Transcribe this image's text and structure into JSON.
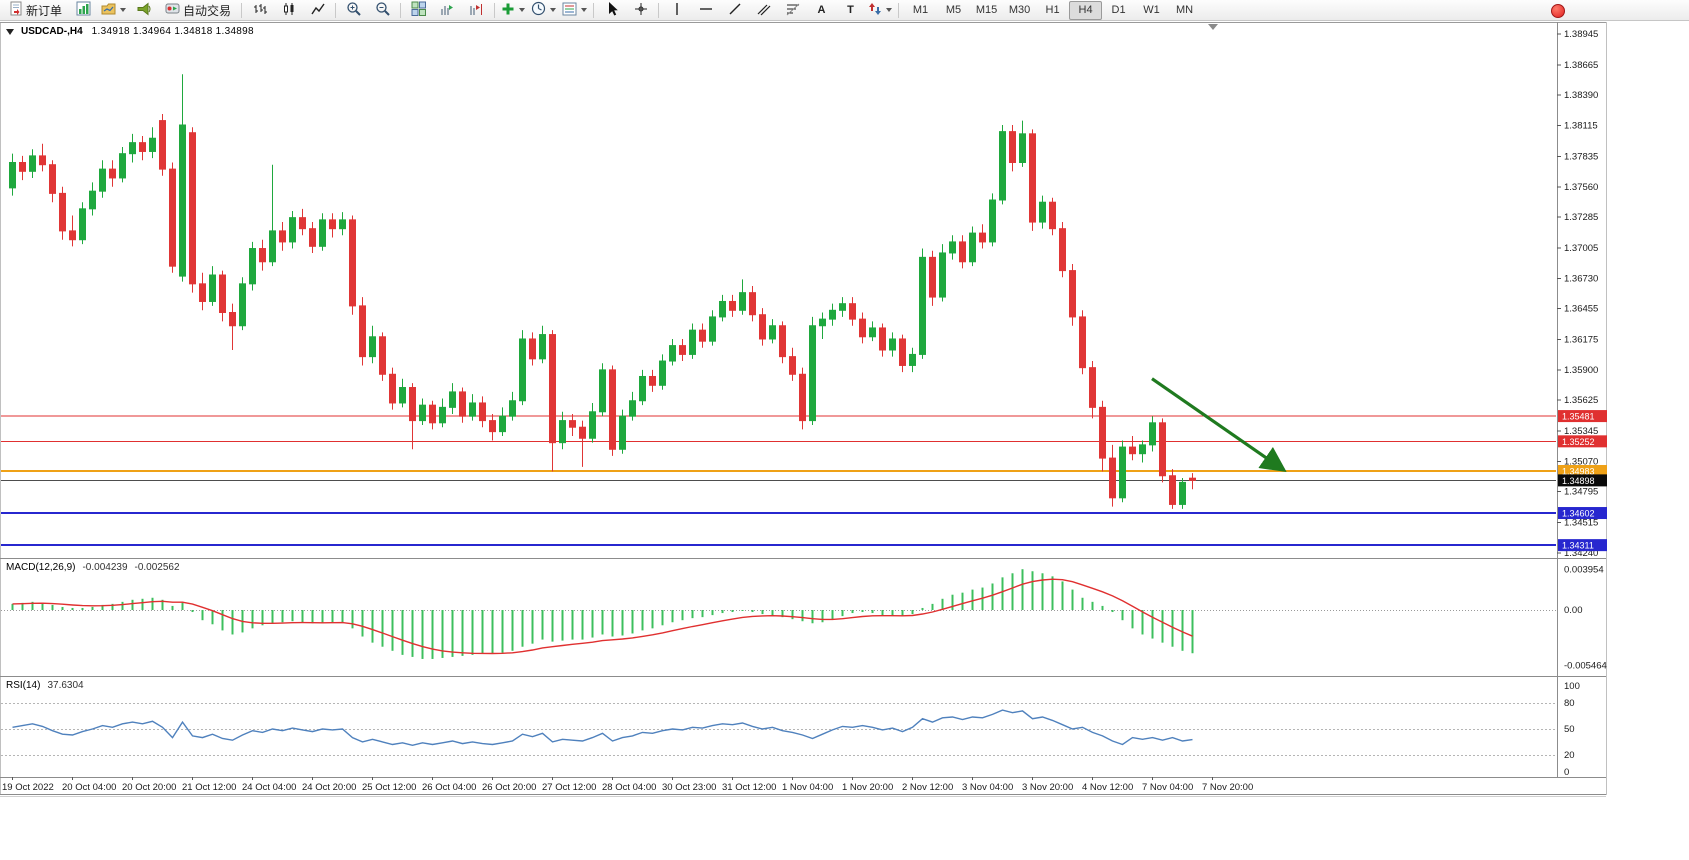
{
  "toolbar": {
    "new_order": "新订单",
    "autotrading": "自动交易",
    "timeframes": [
      "M1",
      "M5",
      "M15",
      "M30",
      "H1",
      "H4",
      "D1",
      "W1",
      "MN"
    ],
    "active_timeframe": "H4",
    "tool_glyphs": {
      "text": "A",
      "label": "T"
    }
  },
  "icons": {
    "new-order-icon": "order-ticket",
    "new-chart-icon": "bar-chart-window",
    "profiles-icon": "folder",
    "alerts-icon": "megaphone",
    "autotrading-icon": "robot-chip",
    "bars-type-icon": "ohlc-bars",
    "candles-type-icon": "candlesticks",
    "line-type-icon": "zigzag-line",
    "zoom-in-icon": "magnifier-plus",
    "zoom-out-icon": "magnifier-minus",
    "tile-windows-icon": "window-grid",
    "auto-scroll-icon": "chart-green-arrow",
    "chart-shift-icon": "chart-red-arrow",
    "indicators-icon": "green-plus",
    "periods-icon": "clock",
    "templates-icon": "chart-palette",
    "cursor-icon": "pointer-arrow",
    "crosshair-icon": "crosshair",
    "vline-icon": "vertical-line",
    "hline-icon": "horizontal-line",
    "trendline-icon": "diagonal-line",
    "channel-icon": "parallel-lines",
    "fibonacci-icon": "fib-retracement",
    "arrows-icon": "arrow-marks",
    "one-click-icon": "triangle-down",
    "notification-icon": "red-dot",
    "chart-shift-marker": "gray-triangle-down"
  },
  "chart_header": {
    "symbol_period": "USDCAD-,H4",
    "ohlc": "1.34918 1.34964 1.34818 1.34898"
  },
  "colors": {
    "bull": "#1fa83e",
    "bear": "#e03636",
    "macd_histogram": "#3cbf5e",
    "macd_signal": "#e03030",
    "rsi_line": "#4f81bd",
    "arrow": "#1f7a1f",
    "level_red": "#e03030",
    "level_orange": "#efa117",
    "level_blue": "#2727cf"
  },
  "chart_data": [
    {
      "type": "candlestick",
      "symbol": "USDCAD",
      "period": "H4",
      "y_ticks": [
        "1.38945",
        "1.38665",
        "1.38390",
        "1.38115",
        "1.37835",
        "1.37560",
        "1.37285",
        "1.37005",
        "1.36730",
        "1.36455",
        "1.36175",
        "1.35900",
        "1.35625",
        "1.35345",
        "1.35070",
        "1.34795",
        "1.34515",
        "1.34240"
      ],
      "x_labels": [
        "19 Oct 2022",
        "20 Oct 04:00",
        "20 Oct 20:00",
        "21 Oct 12:00",
        "24 Oct 04:00",
        "24 Oct 20:00",
        "25 Oct 12:00",
        "26 Oct 04:00",
        "26 Oct 20:00",
        "27 Oct 12:00",
        "28 Oct 04:00",
        "30 Oct 23:00",
        "31 Oct 12:00",
        "1 Nov 04:00",
        "1 Nov 20:00",
        "2 Nov 12:00",
        "3 Nov 04:00",
        "3 Nov 20:00",
        "4 Nov 12:00",
        "7 Nov 04:00",
        "7 Nov 20:00"
      ],
      "levels": [
        {
          "name": "resistance-line-upper",
          "price": 1.35481,
          "color": "#e03030",
          "width": 1,
          "tag": "1.35481"
        },
        {
          "name": "resistance-line-lower",
          "price": 1.35252,
          "color": "#e03030",
          "width": 1,
          "tag": "1.35252"
        },
        {
          "name": "pivot-orange-line",
          "price": 1.34983,
          "color": "#efa117",
          "width": 2,
          "tag": "1.34983"
        },
        {
          "name": "current-price-line",
          "price": 1.34898,
          "color": "#4d4d4d",
          "width": 1,
          "tag": "1.34898",
          "tag_bg": "#0a0a0a"
        },
        {
          "name": "support-line-upper",
          "price": 1.34602,
          "color": "#2727cf",
          "width": 2,
          "tag": "1.34602"
        },
        {
          "name": "support-line-lower",
          "price": 1.34311,
          "color": "#2727cf",
          "width": 2,
          "tag": "1.34311"
        }
      ],
      "arrow": {
        "from_bar": 114,
        "from_price": 1.3582,
        "to_bar": 127.2,
        "to_price": 1.3499,
        "color": "#1f7a1f"
      },
      "ohlc": [
        [
          1.3755,
          1.3786,
          1.3748,
          1.3778
        ],
        [
          1.3778,
          1.3784,
          1.3762,
          1.377
        ],
        [
          1.377,
          1.379,
          1.3764,
          1.3784
        ],
        [
          1.3784,
          1.3795,
          1.377,
          1.3776
        ],
        [
          1.3776,
          1.378,
          1.3742,
          1.375
        ],
        [
          1.375,
          1.3756,
          1.3708,
          1.3716
        ],
        [
          1.3716,
          1.373,
          1.3702,
          1.3708
        ],
        [
          1.3708,
          1.3742,
          1.3704,
          1.3736
        ],
        [
          1.3736,
          1.376,
          1.373,
          1.3752
        ],
        [
          1.3752,
          1.378,
          1.3746,
          1.3772
        ],
        [
          1.3772,
          1.378,
          1.3756,
          1.3764
        ],
        [
          1.3764,
          1.3792,
          1.376,
          1.3786
        ],
        [
          1.3786,
          1.3804,
          1.3778,
          1.3796
        ],
        [
          1.3796,
          1.3802,
          1.378,
          1.3788
        ],
        [
          1.3788,
          1.381,
          1.3782,
          1.38
        ],
        [
          1.3816,
          1.3822,
          1.3766,
          1.3772
        ],
        [
          1.3772,
          1.3778,
          1.3678,
          1.3684
        ],
        [
          1.3675,
          1.3858,
          1.367,
          1.3812
        ],
        [
          1.3805,
          1.381,
          1.366,
          1.3668
        ],
        [
          1.3668,
          1.3678,
          1.3644,
          1.3652
        ],
        [
          1.3652,
          1.3684,
          1.3648,
          1.3676
        ],
        [
          1.3676,
          1.368,
          1.3634,
          1.3642
        ],
        [
          1.3642,
          1.365,
          1.3608,
          1.363
        ],
        [
          1.363,
          1.3674,
          1.3626,
          1.3668
        ],
        [
          1.3668,
          1.3706,
          1.3662,
          1.37
        ],
        [
          1.37,
          1.3708,
          1.368,
          1.3688
        ],
        [
          1.3688,
          1.3776,
          1.3684,
          1.3716
        ],
        [
          1.3716,
          1.3724,
          1.3698,
          1.3706
        ],
        [
          1.3706,
          1.3734,
          1.37,
          1.3728
        ],
        [
          1.3728,
          1.3736,
          1.3712,
          1.3718
        ],
        [
          1.3718,
          1.3724,
          1.3696,
          1.3702
        ],
        [
          1.3702,
          1.3732,
          1.3698,
          1.3726
        ],
        [
          1.3726,
          1.3732,
          1.371,
          1.3718
        ],
        [
          1.3718,
          1.3733,
          1.3712,
          1.3726
        ],
        [
          1.3726,
          1.373,
          1.364,
          1.3648
        ],
        [
          1.3648,
          1.3656,
          1.3594,
          1.3602
        ],
        [
          1.3602,
          1.363,
          1.3596,
          1.362
        ],
        [
          1.362,
          1.3624,
          1.358,
          1.3586
        ],
        [
          1.3586,
          1.3592,
          1.3554,
          1.356
        ],
        [
          1.356,
          1.3582,
          1.3556,
          1.3574
        ],
        [
          1.3574,
          1.3578,
          1.3518,
          1.3544
        ],
        [
          1.3544,
          1.3564,
          1.354,
          1.3558
        ],
        [
          1.3558,
          1.3562,
          1.3536,
          1.3542
        ],
        [
          1.3542,
          1.3564,
          1.3538,
          1.3556
        ],
        [
          1.3556,
          1.3578,
          1.355,
          1.357
        ],
        [
          1.357,
          1.3574,
          1.3542,
          1.3548
        ],
        [
          1.3548,
          1.3568,
          1.3544,
          1.356
        ],
        [
          1.356,
          1.3566,
          1.3538,
          1.3544
        ],
        [
          1.3544,
          1.355,
          1.3526,
          1.3534
        ],
        [
          1.3534,
          1.3556,
          1.353,
          1.3548
        ],
        [
          1.3548,
          1.357,
          1.3544,
          1.3562
        ],
        [
          1.3562,
          1.3626,
          1.3558,
          1.3618
        ],
        [
          1.3618,
          1.3624,
          1.3594,
          1.36
        ],
        [
          1.36,
          1.363,
          1.3596,
          1.3622
        ],
        [
          1.3622,
          1.3626,
          1.3498,
          1.3524
        ],
        [
          1.3524,
          1.3552,
          1.3518,
          1.3544
        ],
        [
          1.3544,
          1.355,
          1.353,
          1.3538
        ],
        [
          1.3538,
          1.3544,
          1.3502,
          1.3528
        ],
        [
          1.3528,
          1.356,
          1.3524,
          1.3552
        ],
        [
          1.3552,
          1.3596,
          1.3548,
          1.359
        ],
        [
          1.359,
          1.3594,
          1.3512,
          1.3518
        ],
        [
          1.3518,
          1.3554,
          1.3514,
          1.3548
        ],
        [
          1.3548,
          1.357,
          1.3544,
          1.3562
        ],
        [
          1.3562,
          1.359,
          1.3558,
          1.3584
        ],
        [
          1.3584,
          1.359,
          1.357,
          1.3576
        ],
        [
          1.3576,
          1.3604,
          1.3572,
          1.3598
        ],
        [
          1.3598,
          1.3618,
          1.3594,
          1.3612
        ],
        [
          1.3612,
          1.3618,
          1.3598,
          1.3604
        ],
        [
          1.3604,
          1.3632,
          1.36,
          1.3626
        ],
        [
          1.3626,
          1.3632,
          1.361,
          1.3616
        ],
        [
          1.3616,
          1.3644,
          1.3612,
          1.3638
        ],
        [
          1.3638,
          1.3658,
          1.3634,
          1.3652
        ],
        [
          1.3652,
          1.3658,
          1.3638,
          1.3644
        ],
        [
          1.3644,
          1.3672,
          1.364,
          1.366
        ],
        [
          1.366,
          1.3666,
          1.3634,
          1.364
        ],
        [
          1.364,
          1.3646,
          1.3612,
          1.3618
        ],
        [
          1.3618,
          1.3636,
          1.3614,
          1.363
        ],
        [
          1.363,
          1.3634,
          1.3596,
          1.3602
        ],
        [
          1.3602,
          1.361,
          1.358,
          1.3586
        ],
        [
          1.3586,
          1.3592,
          1.3536,
          1.3544
        ],
        [
          1.3544,
          1.3638,
          1.354,
          1.363
        ],
        [
          1.363,
          1.3642,
          1.3618,
          1.3636
        ],
        [
          1.3636,
          1.365,
          1.363,
          1.3644
        ],
        [
          1.3644,
          1.3656,
          1.3638,
          1.365
        ],
        [
          1.365,
          1.3656,
          1.363,
          1.3636
        ],
        [
          1.3636,
          1.3642,
          1.3614,
          1.362
        ],
        [
          1.362,
          1.3634,
          1.3616,
          1.3628
        ],
        [
          1.3628,
          1.3632,
          1.3602,
          1.3608
        ],
        [
          1.3608,
          1.3624,
          1.3602,
          1.3618
        ],
        [
          1.3618,
          1.3622,
          1.3588,
          1.3594
        ],
        [
          1.3594,
          1.361,
          1.3588,
          1.3604
        ],
        [
          1.3604,
          1.37,
          1.36,
          1.3692
        ],
        [
          1.3692,
          1.3698,
          1.3648,
          1.3656
        ],
        [
          1.3656,
          1.3704,
          1.3652,
          1.3696
        ],
        [
          1.3696,
          1.3712,
          1.369,
          1.3706
        ],
        [
          1.3706,
          1.3712,
          1.3682,
          1.3688
        ],
        [
          1.3688,
          1.372,
          1.3684,
          1.3714
        ],
        [
          1.3714,
          1.3722,
          1.37,
          1.3706
        ],
        [
          1.3706,
          1.375,
          1.3702,
          1.3744
        ],
        [
          1.3744,
          1.3812,
          1.374,
          1.3806
        ],
        [
          1.3806,
          1.3812,
          1.377,
          1.3778
        ],
        [
          1.3778,
          1.3816,
          1.3774,
          1.3804
        ],
        [
          1.3804,
          1.3808,
          1.3716,
          1.3724
        ],
        [
          1.3724,
          1.3748,
          1.3718,
          1.3742
        ],
        [
          1.3742,
          1.3746,
          1.3712,
          1.3718
        ],
        [
          1.3718,
          1.3724,
          1.3674,
          1.368
        ],
        [
          1.368,
          1.3686,
          1.363,
          1.3638
        ],
        [
          1.3638,
          1.3644,
          1.3586,
          1.3592
        ],
        [
          1.3592,
          1.3598,
          1.3546,
          1.3556
        ],
        [
          1.3556,
          1.3562,
          1.3498,
          1.351
        ],
        [
          1.351,
          1.3522,
          1.3466,
          1.3474
        ],
        [
          1.3474,
          1.3526,
          1.347,
          1.352
        ],
        [
          1.352,
          1.353,
          1.3508,
          1.3514
        ],
        [
          1.3514,
          1.3526,
          1.3506,
          1.3522
        ],
        [
          1.3522,
          1.3548,
          1.3516,
          1.3542
        ],
        [
          1.3542,
          1.3546,
          1.3488,
          1.3494
        ],
        [
          1.3494,
          1.35,
          1.3464,
          1.3468
        ],
        [
          1.3468,
          1.3492,
          1.3464,
          1.3488
        ],
        [
          1.34918,
          1.34964,
          1.34818,
          1.34898
        ]
      ]
    },
    {
      "type": "bar",
      "name": "MACD",
      "label": "MACD(12,26,9)",
      "value_main": "-0.004239",
      "value_signal": "-0.002562",
      "y_ticks": [
        "0.003954",
        "0.00",
        "-0.005464"
      ],
      "values": [
        0.0006,
        0.0007,
        0.0008,
        0.0007,
        0.0005,
        0.0003,
        0.0002,
        0.0002,
        0.0003,
        0.0005,
        0.0006,
        0.0008,
        0.001,
        0.0011,
        0.0012,
        0.001,
        0.0004,
        0.0008,
        -0.0002,
        -0.001,
        -0.0014,
        -0.002,
        -0.0024,
        -0.0022,
        -0.0018,
        -0.0015,
        -0.0013,
        -0.0012,
        -0.0011,
        -0.0012,
        -0.0013,
        -0.0013,
        -0.0012,
        -0.0012,
        -0.0018,
        -0.0026,
        -0.0032,
        -0.0036,
        -0.004,
        -0.0044,
        -0.0046,
        -0.0048,
        -0.0048,
        -0.0047,
        -0.0046,
        -0.0045,
        -0.0044,
        -0.0043,
        -0.0043,
        -0.0042,
        -0.004,
        -0.0036,
        -0.0033,
        -0.0029,
        -0.0031,
        -0.003,
        -0.0029,
        -0.0029,
        -0.0027,
        -0.0024,
        -0.0026,
        -0.0025,
        -0.0023,
        -0.002,
        -0.0018,
        -0.0015,
        -0.0012,
        -0.001,
        -0.0008,
        -0.0007,
        -0.0005,
        -0.0003,
        -0.0002,
        -0.0001,
        -0.0002,
        -0.0004,
        -0.0005,
        -0.0007,
        -0.0009,
        -0.0011,
        -0.0013,
        -0.0012,
        -0.0009,
        -0.0006,
        -0.0003,
        -0.0002,
        -0.0003,
        -0.0005,
        -0.0006,
        -0.0006,
        -0.0004,
        0.0002,
        0.0006,
        0.0011,
        0.0015,
        0.0017,
        0.002,
        0.0022,
        0.0026,
        0.0032,
        0.0036,
        0.004,
        0.0038,
        0.0036,
        0.0033,
        0.0028,
        0.002,
        0.0012,
        0.0008,
        0.0004,
        -0.0002,
        -0.001,
        -0.0018,
        -0.0024,
        -0.0028,
        -0.0032,
        -0.0036,
        -0.004,
        -0.004239
      ]
    },
    {
      "type": "line",
      "name": "RSI",
      "label": "RSI(14)",
      "value": "37.6304",
      "levels": [
        80,
        50,
        20
      ],
      "y_ticks": [
        "100",
        "80",
        "50",
        "20",
        "0"
      ],
      "values": [
        52,
        54,
        56,
        53,
        48,
        44,
        43,
        47,
        50,
        54,
        52,
        56,
        58,
        56,
        59,
        52,
        40,
        58,
        42,
        40,
        44,
        39,
        37,
        43,
        48,
        46,
        50,
        48,
        51,
        49,
        47,
        50,
        49,
        50,
        40,
        35,
        38,
        35,
        32,
        34,
        31,
        34,
        32,
        34,
        36,
        33,
        35,
        33,
        32,
        34,
        36,
        44,
        41,
        45,
        35,
        38,
        37,
        36,
        40,
        45,
        36,
        40,
        42,
        46,
        45,
        48,
        50,
        49,
        52,
        51,
        54,
        56,
        55,
        57,
        53,
        50,
        52,
        48,
        46,
        43,
        39,
        44,
        49,
        53,
        52,
        54,
        52,
        49,
        51,
        47,
        52,
        62,
        58,
        63,
        64,
        61,
        64,
        63,
        67,
        72,
        69,
        71,
        62,
        64,
        60,
        55,
        50,
        52,
        46,
        42,
        36,
        32,
        40,
        38,
        40,
        37,
        40,
        36,
        37.63
      ]
    }
  ]
}
